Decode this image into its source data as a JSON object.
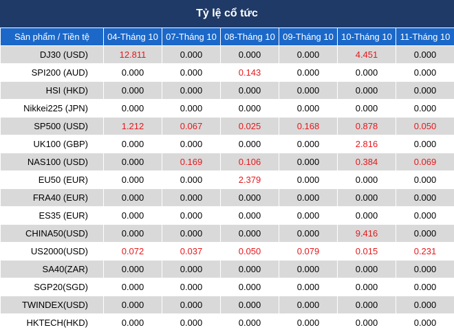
{
  "title": "Tỷ lệ cổ tức",
  "header": {
    "first": "Sản phẩm / Tiền tệ",
    "dates": [
      "04-Tháng 10",
      "07-Tháng 10",
      "08-Tháng 10",
      "09-Tháng 10",
      "10-Tháng 10",
      "11-Tháng 10"
    ]
  },
  "highlight_color": "#e6171b",
  "rows": [
    {
      "product": "DJ30 (USD)",
      "values": [
        "12.811",
        "0.000",
        "0.000",
        "0.000",
        "4.451",
        "0.000"
      ]
    },
    {
      "product": "SPI200 (AUD)",
      "values": [
        "0.000",
        "0.000",
        "0.143",
        "0.000",
        "0.000",
        "0.000"
      ]
    },
    {
      "product": "HSI (HKD)",
      "values": [
        "0.000",
        "0.000",
        "0.000",
        "0.000",
        "0.000",
        "0.000"
      ]
    },
    {
      "product": "Nikkei225 (JPN)",
      "values": [
        "0.000",
        "0.000",
        "0.000",
        "0.000",
        "0.000",
        "0.000"
      ]
    },
    {
      "product": "SP500 (USD)",
      "values": [
        "1.212",
        "0.067",
        "0.025",
        "0.168",
        "0.878",
        "0.050"
      ]
    },
    {
      "product": "UK100 (GBP)",
      "values": [
        "0.000",
        "0.000",
        "0.000",
        "0.000",
        "2.816",
        "0.000"
      ]
    },
    {
      "product": "NAS100 (USD)",
      "values": [
        "0.000",
        "0.169",
        "0.106",
        "0.000",
        "0.384",
        "0.069"
      ]
    },
    {
      "product": "EU50 (EUR)",
      "values": [
        "0.000",
        "0.000",
        "2.379",
        "0.000",
        "0.000",
        "0.000"
      ]
    },
    {
      "product": "FRA40 (EUR)",
      "values": [
        "0.000",
        "0.000",
        "0.000",
        "0.000",
        "0.000",
        "0.000"
      ]
    },
    {
      "product": "ES35 (EUR)",
      "values": [
        "0.000",
        "0.000",
        "0.000",
        "0.000",
        "0.000",
        "0.000"
      ]
    },
    {
      "product": "CHINA50(USD)",
      "values": [
        "0.000",
        "0.000",
        "0.000",
        "0.000",
        "9.416",
        "0.000"
      ]
    },
    {
      "product": "US2000(USD)",
      "values": [
        "0.072",
        "0.037",
        "0.050",
        "0.079",
        "0.015",
        "0.231"
      ]
    },
    {
      "product": "SA40(ZAR)",
      "values": [
        "0.000",
        "0.000",
        "0.000",
        "0.000",
        "0.000",
        "0.000"
      ]
    },
    {
      "product": "SGP20(SGD)",
      "values": [
        "0.000",
        "0.000",
        "0.000",
        "0.000",
        "0.000",
        "0.000"
      ]
    },
    {
      "product": "TWINDEX(USD)",
      "values": [
        "0.000",
        "0.000",
        "0.000",
        "0.000",
        "0.000",
        "0.000"
      ]
    },
    {
      "product": "HKTECH(HKD)",
      "values": [
        "0.000",
        "0.000",
        "0.000",
        "0.000",
        "0.000",
        "0.000"
      ]
    }
  ]
}
